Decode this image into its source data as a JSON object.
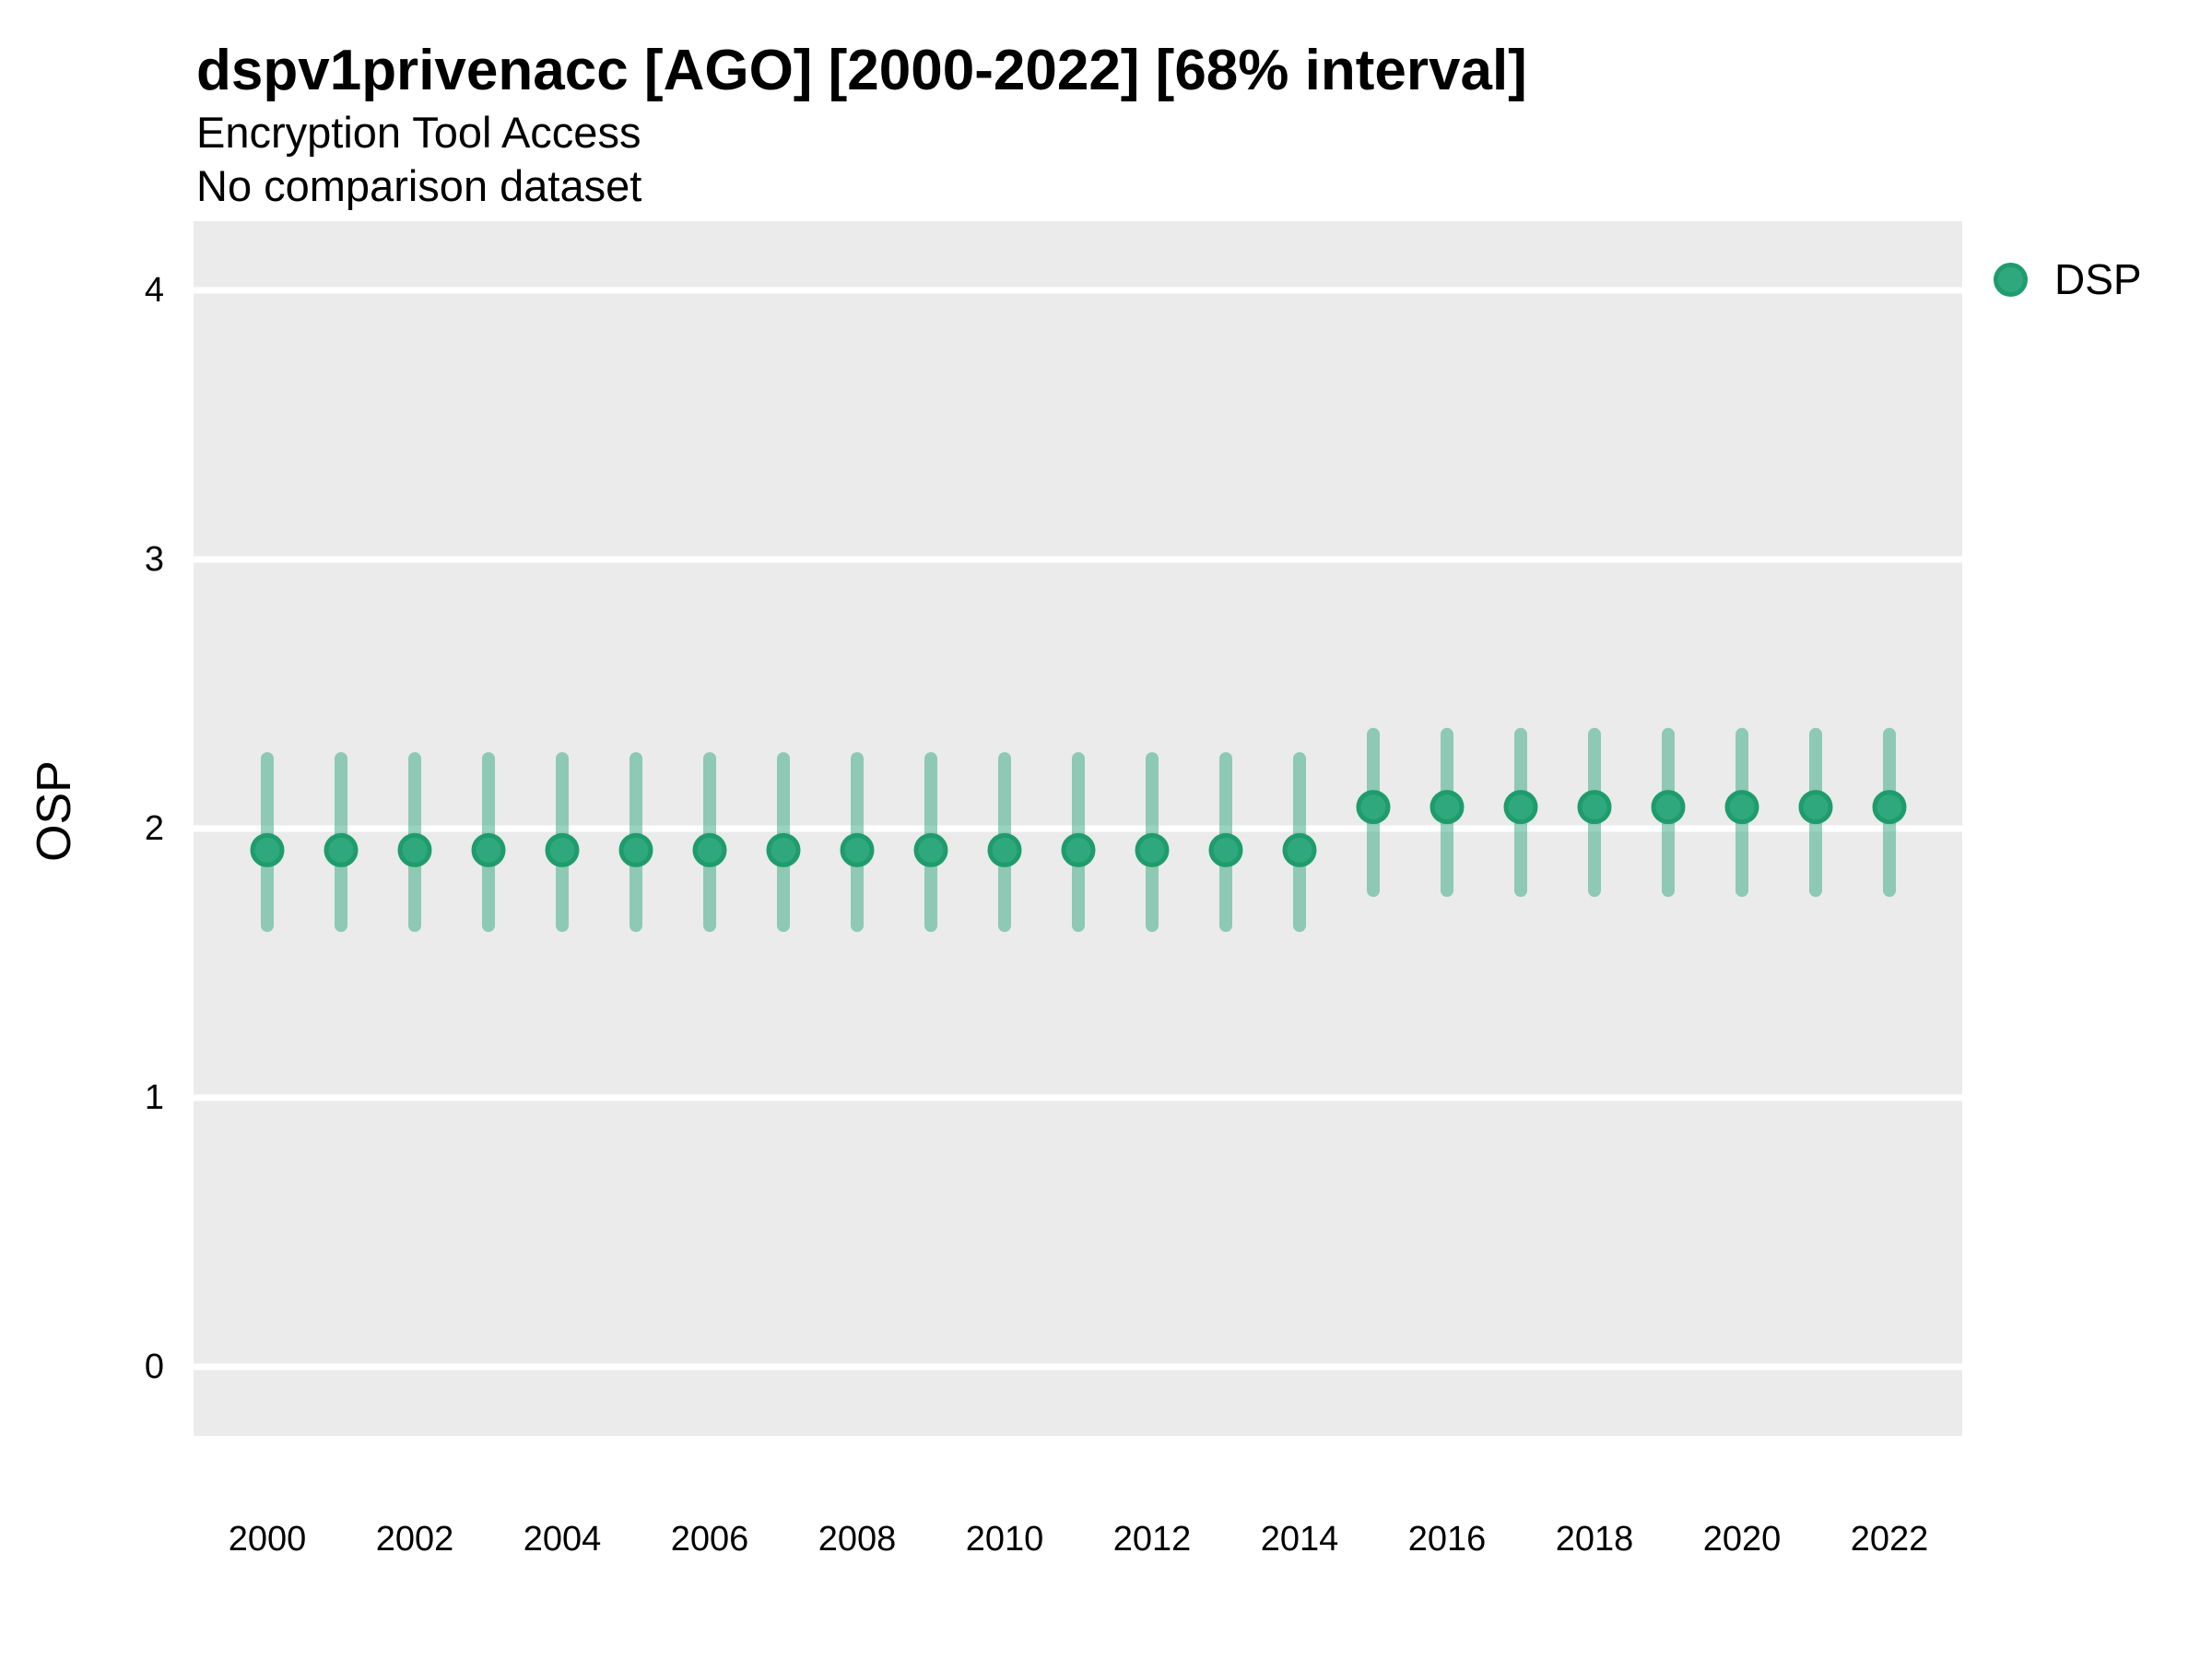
{
  "title": "dspv1privenacc [AGO] [2000-2022] [68% interval]",
  "subtitle1": "Encryption Tool Access",
  "subtitle2": "No comparison dataset",
  "legend": {
    "label": "DSP",
    "marker": "circle-icon"
  },
  "colors": {
    "point": "#2FA87D",
    "point_border": "#1F9C6C",
    "interval": "rgba(47,168,125,0.5)",
    "panel_bg": "#EBEBEB",
    "gridline": "#FFFFFF",
    "text": "#000000"
  },
  "axes": {
    "y_title": "OSP",
    "y_tick_labels": [
      "0",
      "1",
      "2",
      "3",
      "4"
    ],
    "x_tick_labels": [
      "2000",
      "2002",
      "2004",
      "2006",
      "2008",
      "2010",
      "2012",
      "2014",
      "2016",
      "2018",
      "2020",
      "2022"
    ]
  },
  "chart_data": {
    "type": "scatter",
    "subtype": "pointrange",
    "title": "dspv1privenacc [AGO] [2000-2022] [68% interval]",
    "subtitle": "Encryption Tool Access / No comparison dataset",
    "xlabel": "",
    "ylabel": "OSP",
    "x": [
      2000,
      2001,
      2002,
      2003,
      2004,
      2005,
      2006,
      2007,
      2008,
      2009,
      2010,
      2011,
      2012,
      2013,
      2014,
      2015,
      2016,
      2017,
      2018,
      2019,
      2020,
      2021,
      2022
    ],
    "series": [
      {
        "name": "DSP",
        "values": [
          1.92,
          1.92,
          1.92,
          1.92,
          1.92,
          1.92,
          1.92,
          1.92,
          1.92,
          1.92,
          1.92,
          1.92,
          1.92,
          1.92,
          1.92,
          2.08,
          2.08,
          2.08,
          2.08,
          2.08,
          2.08,
          2.08,
          2.08
        ],
        "low": [
          1.64,
          1.64,
          1.64,
          1.64,
          1.64,
          1.64,
          1.64,
          1.64,
          1.64,
          1.64,
          1.64,
          1.64,
          1.64,
          1.64,
          1.64,
          1.77,
          1.77,
          1.77,
          1.77,
          1.77,
          1.77,
          1.77,
          1.77
        ],
        "high": [
          2.26,
          2.26,
          2.26,
          2.26,
          2.26,
          2.26,
          2.26,
          2.26,
          2.26,
          2.26,
          2.26,
          2.26,
          2.26,
          2.26,
          2.26,
          2.35,
          2.35,
          2.35,
          2.35,
          2.35,
          2.35,
          2.35,
          2.35
        ]
      }
    ],
    "interval_label": "68% interval",
    "yticks": [
      0,
      1,
      2,
      3,
      4
    ],
    "xticks": [
      2000,
      2002,
      2004,
      2006,
      2008,
      2010,
      2012,
      2014,
      2016,
      2018,
      2020,
      2022
    ],
    "ylim": [
      -0.26,
      4.26
    ],
    "grid": "horizontal-major-only",
    "legend_position": "right-top"
  }
}
